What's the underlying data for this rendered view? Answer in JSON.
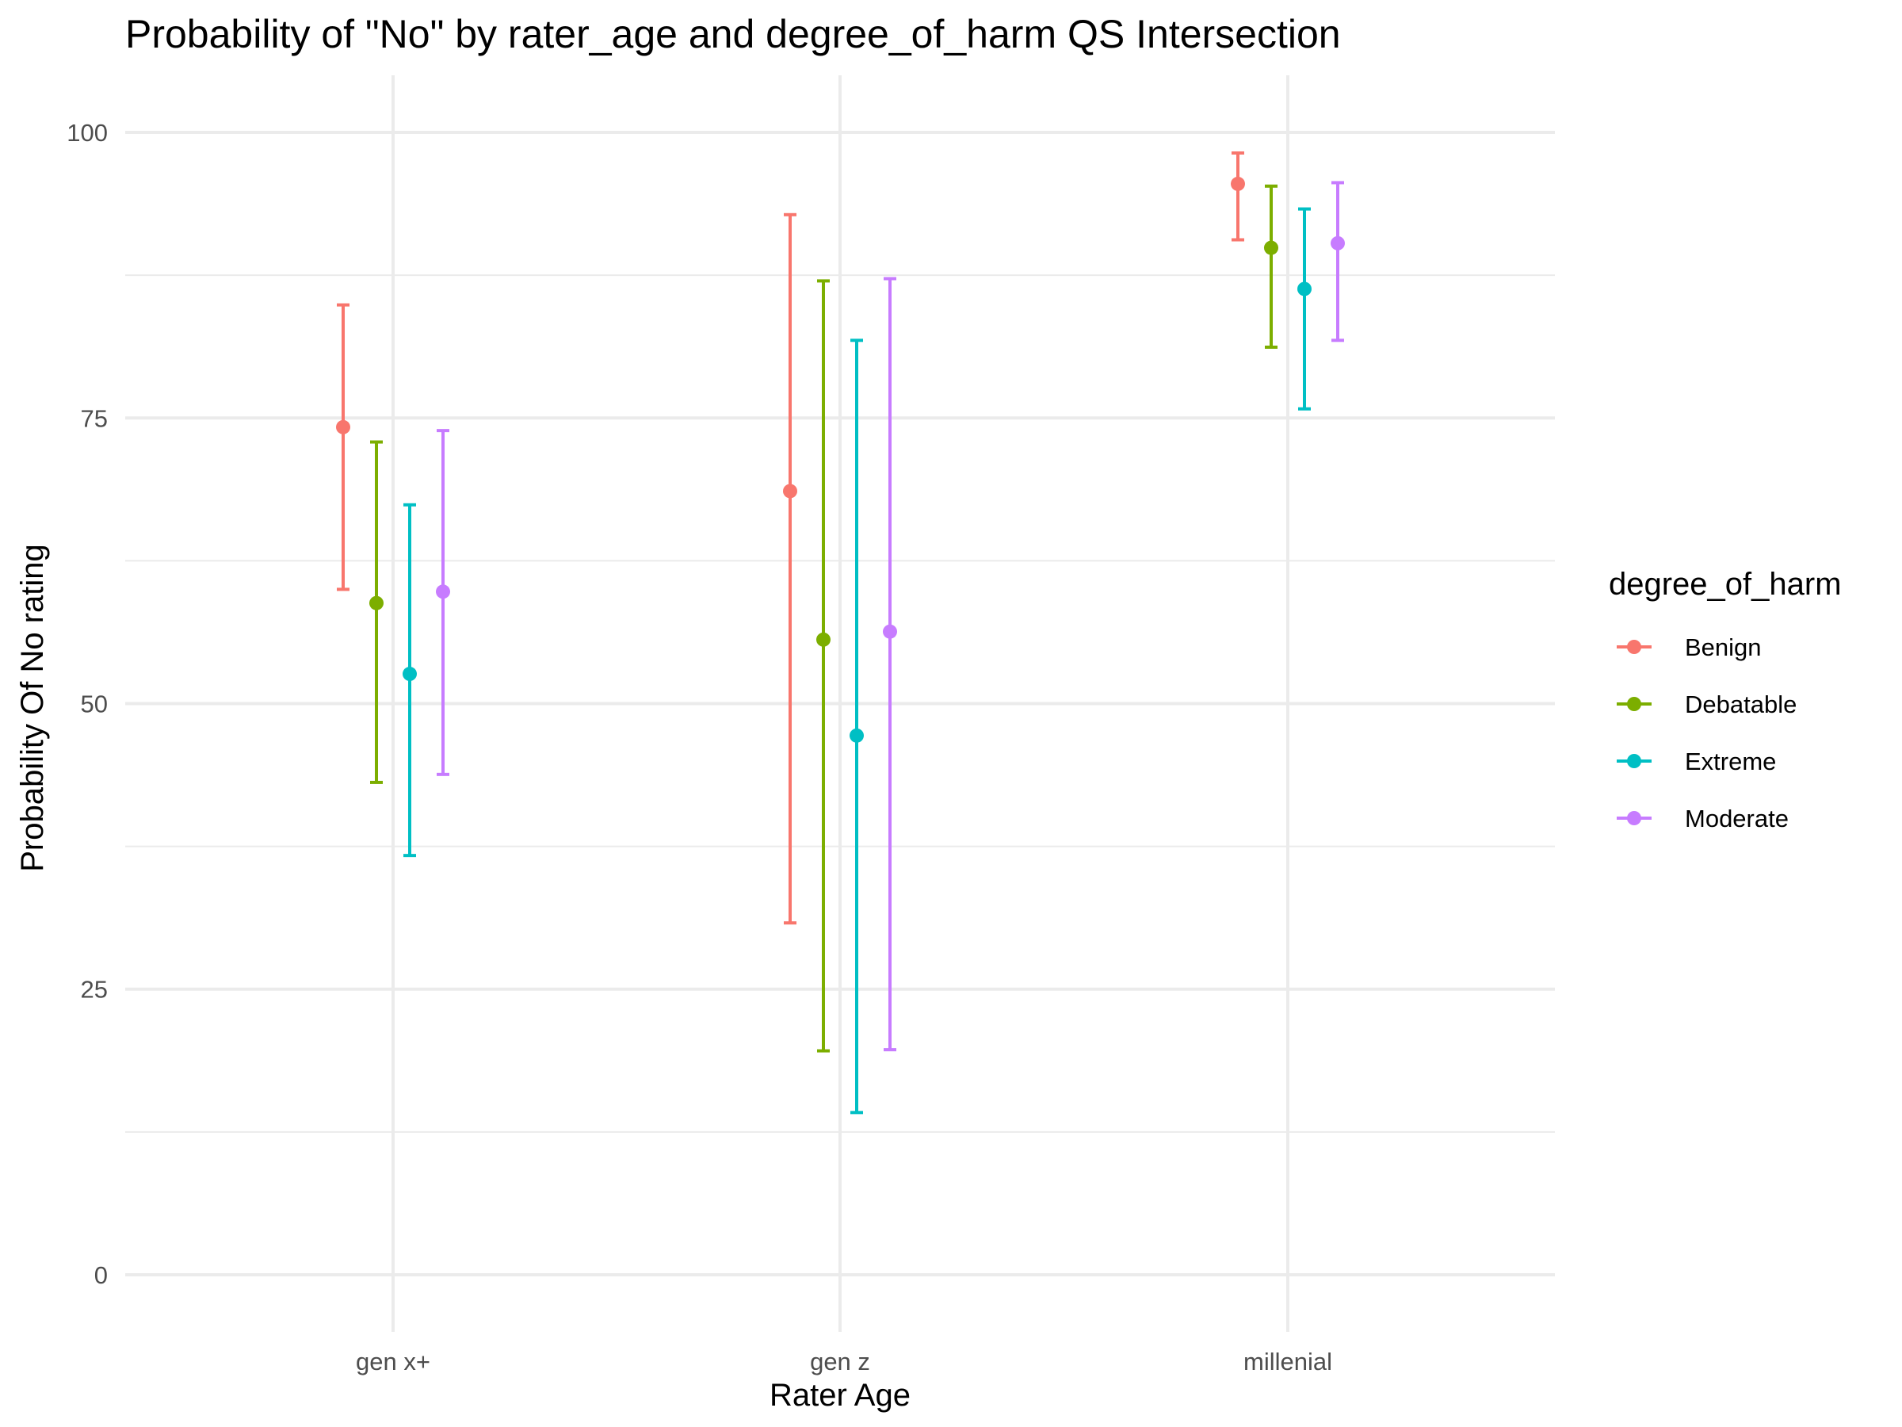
{
  "chart_data": {
    "type": "scatter",
    "title": "Probability of \"No\" by rater_age and  degree_of_harm  QS Intersection",
    "xlabel": "Rater Age",
    "ylabel": "Probability Of No rating",
    "categories": [
      "gen x+",
      "gen z",
      "millenial"
    ],
    "ylim": [
      -5,
      105
    ],
    "yticks": [
      0,
      25,
      50,
      75,
      100
    ],
    "grid": true,
    "legend": {
      "title": "degree_of_harm",
      "position": "right"
    },
    "series": [
      {
        "name": "Benign",
        "color": "#F8766D",
        "values": [
          74.2,
          68.6,
          95.5
        ],
        "lower": [
          60.0,
          30.8,
          90.6
        ],
        "upper": [
          84.9,
          92.8,
          98.2
        ]
      },
      {
        "name": "Debatable",
        "color": "#7CAE00",
        "values": [
          58.8,
          55.6,
          89.9
        ],
        "lower": [
          43.1,
          19.6,
          81.2
        ],
        "upper": [
          72.9,
          87.0,
          95.3
        ]
      },
      {
        "name": "Extreme",
        "color": "#00BFC4",
        "values": [
          52.6,
          47.2,
          86.3
        ],
        "lower": [
          36.7,
          14.2,
          75.8
        ],
        "upper": [
          67.4,
          81.8,
          93.3
        ]
      },
      {
        "name": "Moderate",
        "color": "#C77CFF",
        "values": [
          59.8,
          56.3,
          90.3
        ],
        "lower": [
          43.8,
          19.7,
          81.8
        ],
        "upper": [
          73.9,
          87.2,
          95.6
        ]
      }
    ]
  }
}
